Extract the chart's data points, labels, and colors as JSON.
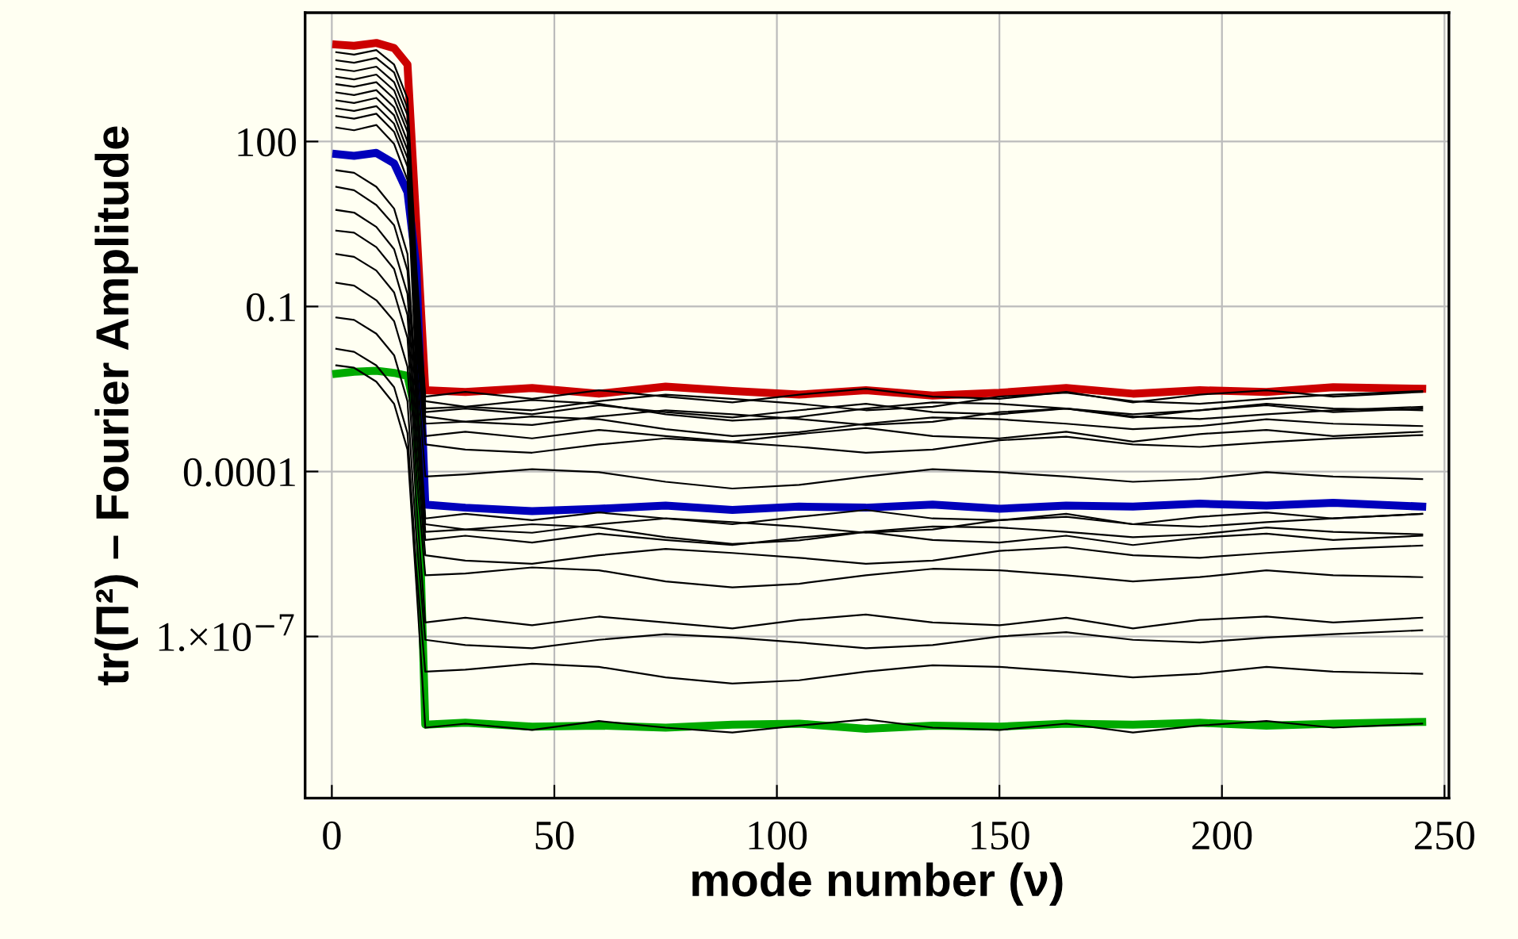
{
  "chart_data": {
    "type": "line",
    "xlabel": "mode number (ν)",
    "ylabel": "tr(Π²) – Fourier Amplitude",
    "x": [
      1,
      5,
      10,
      14,
      17,
      19,
      21,
      30,
      45,
      60,
      75,
      90,
      105,
      120,
      135,
      150,
      165,
      180,
      195,
      210,
      225,
      245
    ],
    "log": "y",
    "grid": true,
    "marker": "none",
    "line_style": "solid",
    "xlim": [
      -6,
      251
    ],
    "xticks": [
      0,
      50,
      100,
      150,
      200,
      250
    ],
    "ylim": [
      1.15e-10,
      22000
    ],
    "yticks": [
      {
        "value": 1e-07,
        "label": "1.×10$^{−7}$"
      },
      0.0001,
      0.1,
      100
    ],
    "series": [
      {
        "color": "#cc0000",
        "values": [
          5800,
          5500,
          6200,
          5000,
          2500,
          3.0,
          0.003,
          0.0028,
          0.0033,
          0.0026,
          0.0035,
          0.0029,
          0.0025,
          0.003,
          0.0024,
          0.0027,
          0.0033,
          0.0026,
          0.003,
          0.0028,
          0.0034,
          0.0032
        ]
      },
      {
        "color": "#0000bb",
        "values": [
          59,
          55,
          62,
          40,
          12,
          0.5,
          2.5e-05,
          2.2e-05,
          1.9e-05,
          2.1e-05,
          2.4e-05,
          2e-05,
          2.3e-05,
          2.2e-05,
          2.5e-05,
          2.1e-05,
          2.4e-05,
          2.3e-05,
          2.6e-05,
          2.4e-05,
          2.7e-05,
          2.3e-05
        ]
      },
      {
        "color": "#00aa00",
        "values": [
          0.006,
          0.0065,
          0.0068,
          0.0062,
          0.0055,
          0.001,
          2.5e-09,
          2.7e-09,
          2.3e-09,
          2.4e-09,
          2.2e-09,
          2.5e-09,
          2.6e-09,
          2.1e-09,
          2.4e-09,
          2.3e-09,
          2.6e-09,
          2.5e-09,
          2.7e-09,
          2.4e-09,
          2.6e-09,
          2.8e-09
        ]
      },
      {
        "color": "#000000",
        "values": [
          4200,
          3800,
          4600,
          2500,
          600,
          0.5,
          0.0023,
          0.0028,
          0.0021,
          0.003,
          0.0023,
          0.0018,
          0.0025,
          0.0032,
          0.0023,
          0.0021,
          0.0028,
          0.0018,
          0.0025,
          0.003,
          0.0023,
          0.0028
        ]
      },
      {
        "color": "#000000",
        "values": [
          3000,
          2700,
          3300,
          1800,
          400,
          0.3,
          0.0019,
          0.0015,
          0.0013,
          0.0019,
          0.0025,
          0.0021,
          0.0017,
          0.0013,
          0.0015,
          0.0023,
          0.0027,
          0.0019,
          0.0017,
          0.0021,
          0.0025,
          0.0029
        ]
      },
      {
        "color": "#000000",
        "values": [
          2100,
          1900,
          2300,
          1200,
          300,
          0.2,
          0.0014,
          0.0015,
          0.002,
          0.0017,
          0.0011,
          0.00084,
          0.00098,
          0.0014,
          0.0018,
          0.0017,
          0.0014,
          0.0011,
          0.0013,
          0.0017,
          0.0014,
          0.0013
        ]
      },
      {
        "color": "#000000",
        "values": [
          1500,
          1350,
          1650,
          850,
          200,
          0.1,
          0.0012,
          0.0014,
          0.0011,
          0.0016,
          0.0012,
          0.00096,
          0.0013,
          0.0017,
          0.0012,
          0.0011,
          0.0014,
          0.00096,
          0.0013,
          0.0016,
          0.0012,
          0.0014
        ]
      },
      {
        "color": "#000000",
        "values": [
          1100,
          990,
          1200,
          600,
          150,
          0.08,
          0.001,
          0.0008,
          0.0007,
          0.001,
          0.0013,
          0.0011,
          0.0009,
          0.0007,
          0.0008,
          0.0012,
          0.0014,
          0.001,
          0.0009,
          0.0011,
          0.0013,
          0.0015
        ]
      },
      {
        "color": "#000000",
        "values": [
          780,
          700,
          860,
          420,
          100,
          0.05,
          0.00074,
          0.00081,
          0.001,
          0.00089,
          0.00059,
          0.00044,
          0.00052,
          0.00074,
          0.00096,
          0.00089,
          0.00074,
          0.00059,
          0.00067,
          0.00089,
          0.00074,
          0.00067
        ]
      },
      {
        "color": "#000000",
        "values": [
          560,
          500,
          620,
          300,
          70,
          0.03,
          0.00044,
          0.00053,
          0.0004,
          0.00057,
          0.00044,
          0.00035,
          0.00048,
          0.00062,
          0.00044,
          0.0004,
          0.00053,
          0.00035,
          0.00048,
          0.00057,
          0.00044,
          0.00053
        ]
      },
      {
        "color": "#000000",
        "values": [
          400,
          360,
          440,
          210,
          50,
          0.02,
          0.00031,
          0.00025,
          0.00022,
          0.00031,
          0.0004,
          0.00034,
          0.00028,
          0.00022,
          0.00025,
          0.00037,
          0.00043,
          0.00031,
          0.00028,
          0.00034,
          0.0004,
          0.00046
        ]
      },
      {
        "color": "#000000",
        "values": [
          290,
          260,
          320,
          150,
          35,
          0.01,
          8.1e-05,
          8.9e-05,
          0.00011,
          9.7e-05,
          6.5e-05,
          4.9e-05,
          5.7e-05,
          8.1e-05,
          0.00011,
          9.7e-05,
          8.1e-05,
          6.5e-05,
          7.3e-05,
          9.7e-05,
          8.1e-05,
          7.3e-05
        ]
      },
      {
        "color": "#000000",
        "values": [
          180,
          160,
          200,
          90,
          20,
          0.005,
          1.4e-05,
          1.7e-05,
          1.3e-05,
          1.8e-05,
          1.4e-05,
          1.1e-05,
          1.5e-05,
          2e-05,
          1.4e-05,
          1.3e-05,
          1.7e-05,
          1.1e-05,
          1.5e-05,
          1.8e-05,
          1.4e-05,
          1.7e-05
        ]
      },
      {
        "color": "#000000",
        "values": [
          30,
          27,
          15,
          6,
          0.9,
          0.003,
          1.1e-05,
          8.8e-06,
          7.7e-06,
          1.1e-05,
          1.4e-05,
          1.2e-05,
          9.9e-06,
          7.7e-06,
          8.8e-06,
          1.3e-05,
          1.5e-05,
          1.1e-05,
          9.9e-06,
          1.2e-05,
          1.4e-05,
          1.7e-05
        ]
      },
      {
        "color": "#000000",
        "values": [
          15,
          13,
          7,
          3,
          0.45,
          0.0015,
          8e-06,
          8.8e-06,
          1.1e-05,
          9.6e-06,
          6.4e-06,
          4.8e-06,
          5.6e-06,
          8e-06,
          1e-05,
          9.6e-06,
          8e-06,
          6.4e-06,
          7.2e-06,
          9.6e-06,
          8e-06,
          7.2e-06
        ]
      },
      {
        "color": "#000000",
        "values": [
          5.7,
          5.1,
          2.8,
          1.1,
          0.17,
          0.0006,
          5.7e-06,
          6.8e-06,
          5.1e-06,
          7.4e-06,
          5.7e-06,
          4.6e-06,
          6.3e-06,
          8e-06,
          5.7e-06,
          5.1e-06,
          6.8e-06,
          4.6e-06,
          6.3e-06,
          7.4e-06,
          5.7e-06,
          6.8e-06
        ]
      },
      {
        "color": "#000000",
        "values": [
          2.4,
          2.2,
          1.2,
          0.48,
          0.07,
          0.00024,
          3e-06,
          2.4e-06,
          2.1e-06,
          3e-06,
          3.9e-06,
          3.3e-06,
          2.7e-06,
          2.1e-06,
          2.4e-06,
          3.6e-06,
          4.2e-06,
          3e-06,
          2.7e-06,
          3.3e-06,
          3.9e-06,
          4.5e-06
        ]
      },
      {
        "color": "#000000",
        "values": [
          0.9,
          0.8,
          0.45,
          0.18,
          0.027,
          9e-05,
          1.3e-06,
          1.4e-06,
          1.8e-06,
          1.6e-06,
          1e-06,
          7.8e-07,
          9.1e-07,
          1.3e-06,
          1.7e-06,
          1.6e-06,
          1.3e-06,
          1e-06,
          1.2e-06,
          1.6e-06,
          1.3e-06,
          1.2e-06
        ]
      },
      {
        "color": "#000000",
        "values": [
          0.27,
          0.24,
          0.13,
          0.054,
          0.008,
          2.7e-05,
          1.8e-07,
          2.2e-07,
          1.6e-07,
          2.3e-07,
          1.8e-07,
          1.4e-07,
          2e-07,
          2.5e-07,
          1.8e-07,
          1.6e-07,
          2.2e-07,
          1.4e-07,
          2e-07,
          2.3e-07,
          1.8e-07,
          2.2e-07
        ]
      },
      {
        "color": "#000000",
        "values": [
          0.063,
          0.057,
          0.032,
          0.013,
          0.0019,
          6.3e-06,
          8.7e-08,
          7e-08,
          6.1e-08,
          8.7e-08,
          1.1e-07,
          9.6e-08,
          7.8e-08,
          6.1e-08,
          7e-08,
          1e-07,
          1.2e-07,
          8.7e-08,
          7.8e-08,
          9.6e-08,
          1.1e-07,
          1.3e-07
        ]
      },
      {
        "color": "#000000",
        "values": [
          0.017,
          0.015,
          0.0085,
          0.0034,
          0.0005,
          1.7e-06,
          2.3e-08,
          2.5e-08,
          3.2e-08,
          2.8e-08,
          1.8e-08,
          1.4e-08,
          1.6e-08,
          2.3e-08,
          3e-08,
          2.8e-08,
          2.3e-08,
          1.8e-08,
          2.1e-08,
          2.8e-08,
          2.3e-08,
          2.1e-08
        ]
      },
      {
        "color": "#000000",
        "values": [
          0.0085,
          0.0077,
          0.0043,
          0.0017,
          0.00025,
          8.5e-07,
          2.2e-09,
          2.6e-09,
          2e-09,
          2.9e-09,
          2.2e-09,
          1.8e-09,
          2.4e-09,
          3.1e-09,
          2.2e-09,
          2e-09,
          2.6e-09,
          1.8e-09,
          2.4e-09,
          2.9e-09,
          2.2e-09,
          2.6e-09
        ]
      }
    ]
  }
}
